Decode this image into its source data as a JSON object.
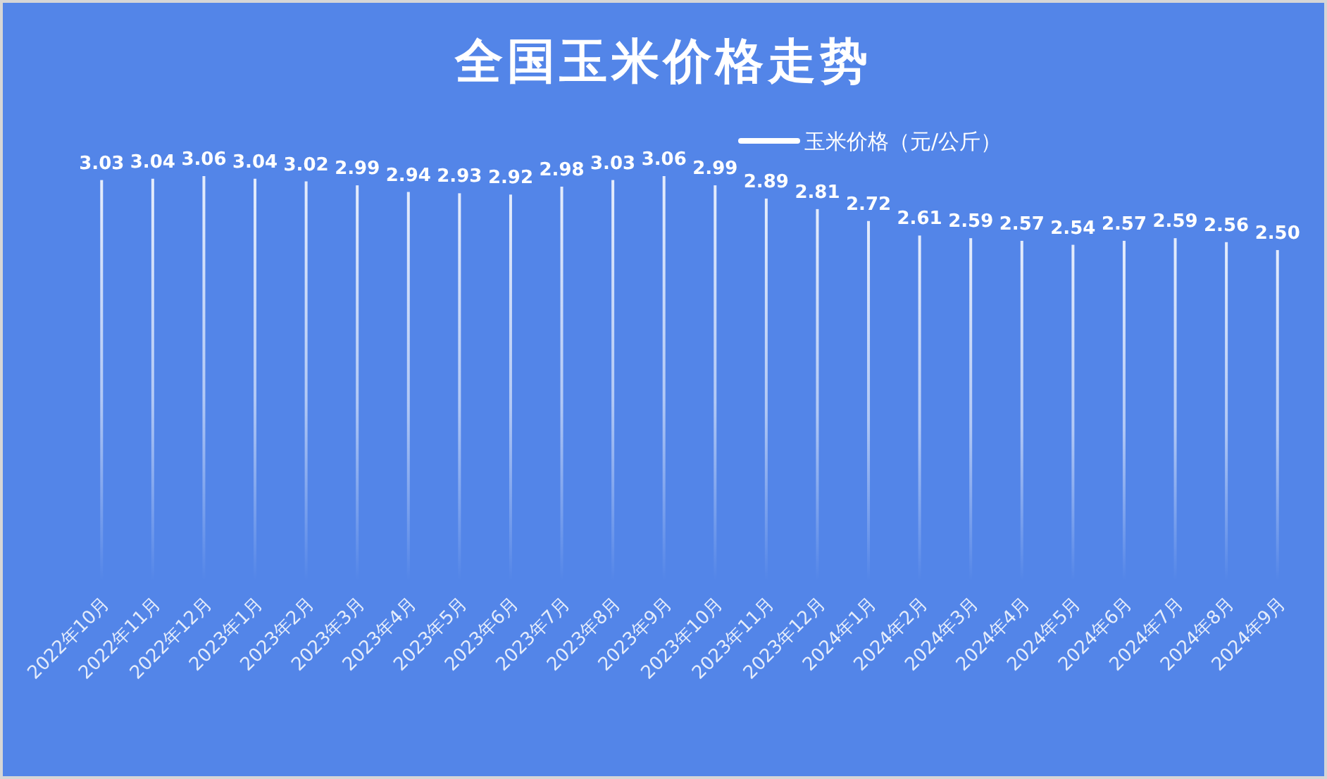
{
  "chart_data": {
    "type": "bar",
    "title": "全国玉米价格走势",
    "categories": [
      "2022年10月",
      "2022年11月",
      "2022年12月",
      "2023年1月",
      "2023年2月",
      "2023年3月",
      "2023年4月",
      "2023年5月",
      "2023年6月",
      "2023年7月",
      "2023年8月",
      "2023年9月",
      "2023年10月",
      "2023年11月",
      "2023年12月",
      "2024年1月",
      "2024年2月",
      "2024年3月",
      "2024年4月",
      "2024年5月",
      "2024年6月",
      "2024年7月",
      "2024年8月",
      "2024年9月"
    ],
    "series": [
      {
        "name": "玉米价格（元/公斤）",
        "color": "#ffffff",
        "values": [
          3.03,
          3.04,
          3.06,
          3.04,
          3.02,
          2.99,
          2.94,
          2.93,
          2.92,
          2.98,
          3.03,
          3.06,
          2.99,
          2.89,
          2.81,
          2.72,
          2.61,
          2.59,
          2.57,
          2.54,
          2.57,
          2.59,
          2.56,
          2.5
        ],
        "value_labels": [
          "3.03",
          "3.04",
          "3.06",
          "3.04",
          "3.02",
          "2.99",
          "2.94",
          "2.93",
          "2.92",
          "2.98",
          "3.03",
          "3.06",
          "2.99",
          "2.89",
          "2.81",
          "2.72",
          "2.61",
          "2.59",
          "2.57",
          "2.54",
          "2.57",
          "2.59",
          "2.56",
          "2.50"
        ]
      }
    ],
    "legend": "top right",
    "grid": false
  }
}
